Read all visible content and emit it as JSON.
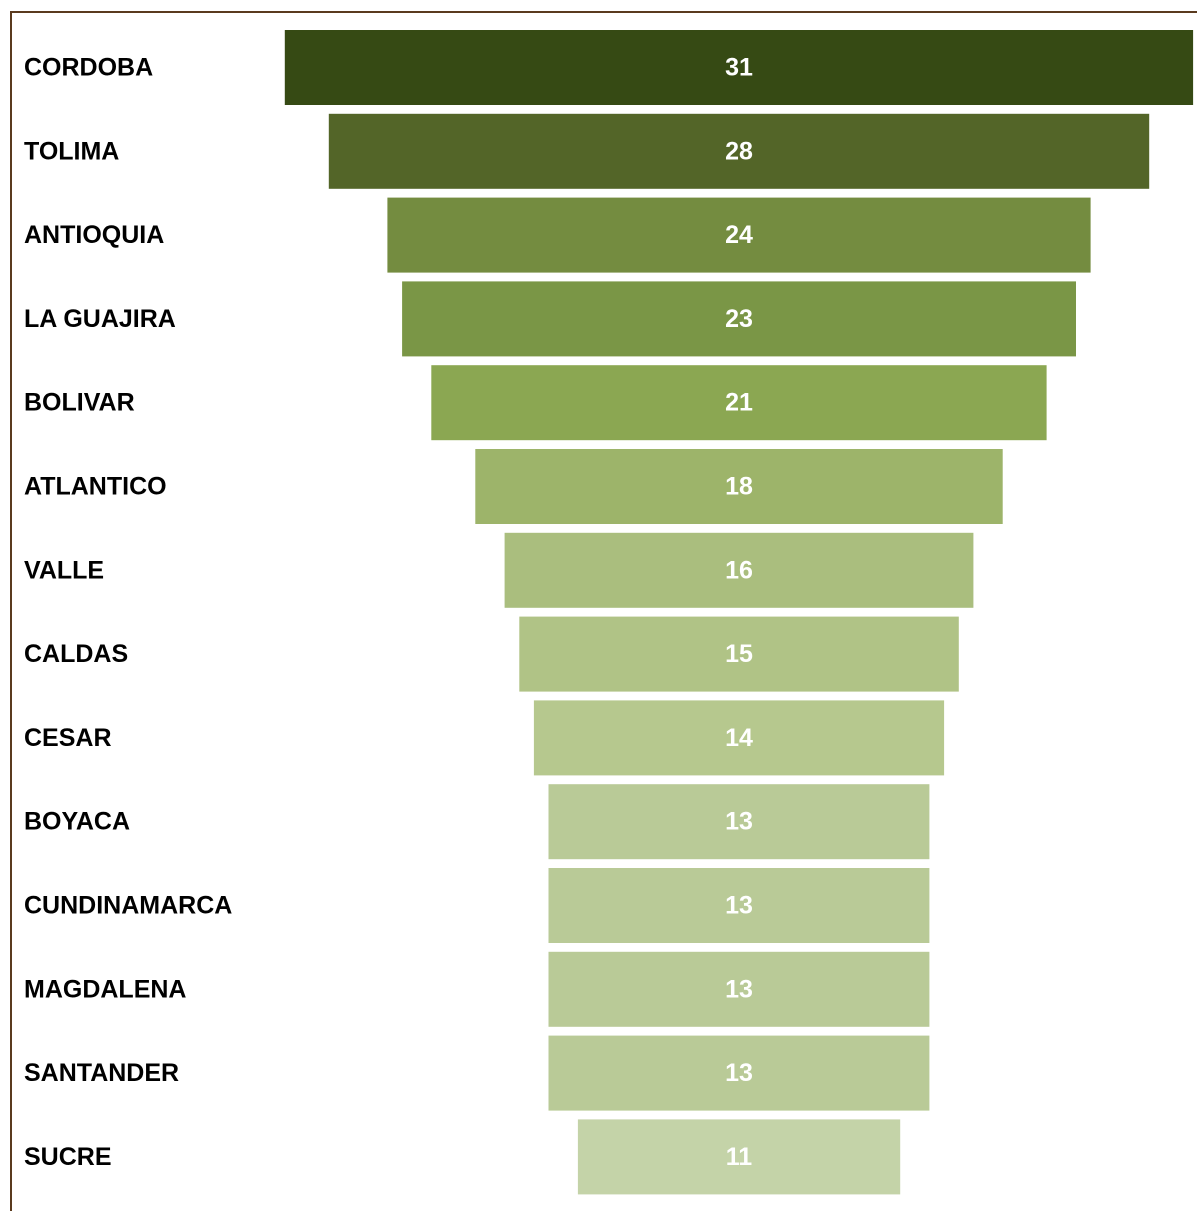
{
  "chart_data": {
    "type": "bar",
    "orientation": "horizontal-funnel",
    "categories": [
      "CORDOBA",
      "TOLIMA",
      "ANTIOQUIA",
      "LA GUAJIRA",
      "BOLIVAR",
      "ATLANTICO",
      "VALLE",
      "CALDAS",
      "CESAR",
      "BOYACA",
      "CUNDINAMARCA",
      "MAGDALENA",
      "SANTANDER",
      "SUCRE"
    ],
    "values": [
      31,
      28,
      24,
      23,
      21,
      18,
      16,
      15,
      14,
      13,
      13,
      13,
      13,
      11
    ],
    "colors": [
      "#364a14",
      "#536528",
      "#748c40",
      "#7a9646",
      "#8ba752",
      "#9db46a",
      "#aabe7e",
      "#b0c386",
      "#b6c88e",
      "#b9ca97",
      "#b9ca97",
      "#b9ca97",
      "#b9ca97",
      "#c4d3a8"
    ],
    "title": "",
    "xlabel": "",
    "ylabel": "",
    "grid": false,
    "legend": "none"
  }
}
